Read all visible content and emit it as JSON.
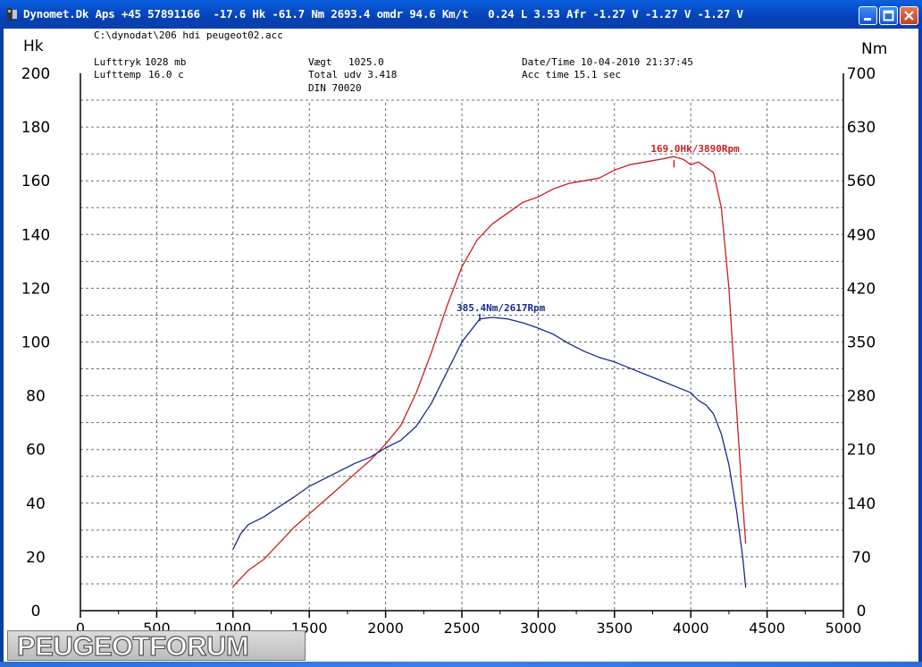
{
  "window": {
    "title": "Dynomet.Dk Aps +45 57891166  -17.6 Hk -61.7 Nm 2693.4 omdr 94.6 Km/t   0.24 L 3.53 Afr -1.27 V -1.27 V -1.27 V"
  },
  "watermark": {
    "text": "PEUGEOTFORUM"
  },
  "colors": {
    "power": "#cc1f1f",
    "torque": "#1a2a8f",
    "grid": "#6e6e6e"
  },
  "chart_data": {
    "type": "line",
    "file": "C:\\dynodat\\206 hdi peugeot02.acc",
    "info": {
      "lufttryk_label": "Lufttryk",
      "lufttryk_value": "1028 mb",
      "lufttemp_label": "Lufttemp",
      "lufttemp_value": "16.0 c",
      "vaegt_label": "Vægt",
      "vaegt_value": "1025.0",
      "total_udv": "Total udv 3.418",
      "din": "DIN 70020",
      "datetime_label": "Date/Time",
      "datetime_value": "10-04-2010 21:37:45",
      "acctime_label": "Acc time",
      "acctime_value": "15.1 sec"
    },
    "y_left_label": "Hk",
    "y_right_label": "Nm",
    "xlim": [
      0,
      5000
    ],
    "ylim_left": [
      0,
      200
    ],
    "ylim_right": [
      0,
      700
    ],
    "x_ticks": [
      "0",
      "500",
      "1000",
      "1500",
      "2000",
      "2500",
      "3000",
      "3500",
      "4000",
      "4500",
      "5000"
    ],
    "y_left_ticks": [
      "0",
      "20",
      "40",
      "60",
      "80",
      "100",
      "120",
      "140",
      "160",
      "180",
      "200"
    ],
    "y_right_ticks": [
      "0",
      "70",
      "140",
      "210",
      "280",
      "350",
      "420",
      "490",
      "560",
      "630",
      "700"
    ],
    "grid": true,
    "annotations": {
      "power_peak": "169.0Hk/3890Rpm",
      "torque_peak": "385.4Nm/2617Rpm"
    },
    "series": [
      {
        "axis": "left",
        "x": [
          1000,
          1050,
          1100,
          1200,
          1300,
          1400,
          1500,
          1600,
          1700,
          1800,
          1900,
          2000,
          2100,
          2200,
          2300,
          2400,
          2500,
          2600,
          2700,
          2800,
          2900,
          3000,
          3100,
          3200,
          3300,
          3400,
          3500,
          3600,
          3700,
          3800,
          3890,
          3950,
          4000,
          4050,
          4100,
          4150,
          4200,
          4250,
          4300,
          4340,
          4360
        ],
        "values": [
          9,
          12,
          15,
          19,
          25,
          31,
          36,
          41,
          46,
          51,
          56,
          62,
          69,
          81,
          96,
          113,
          128,
          138,
          144,
          148,
          152,
          154,
          157,
          159,
          160,
          161,
          164,
          166,
          167,
          168,
          169,
          168,
          166,
          167,
          165,
          163,
          150,
          120,
          75,
          40,
          25
        ]
      },
      {
        "axis": "right",
        "x": [
          1000,
          1050,
          1100,
          1200,
          1300,
          1400,
          1500,
          1600,
          1700,
          1800,
          1900,
          2000,
          2100,
          2200,
          2300,
          2400,
          2500,
          2617,
          2700,
          2800,
          2900,
          3000,
          3100,
          3200,
          3300,
          3400,
          3500,
          3600,
          3700,
          3800,
          3900,
          4000,
          4050,
          4100,
          4150,
          4200,
          4250,
          4300,
          4340,
          4360
        ],
        "values": [
          80,
          100,
          112,
          122,
          135,
          148,
          162,
          172,
          182,
          192,
          200,
          212,
          222,
          240,
          270,
          310,
          350,
          380,
          382,
          380,
          375,
          368,
          360,
          348,
          338,
          330,
          324,
          316,
          308,
          300,
          292,
          284,
          274,
          268,
          256,
          230,
          190,
          130,
          70,
          30
        ]
      }
    ]
  }
}
